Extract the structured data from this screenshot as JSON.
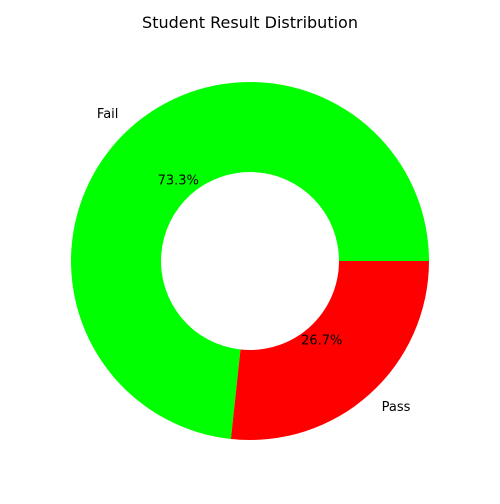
{
  "chart_data": {
    "type": "pie",
    "title": "Student Result Distribution",
    "donut": true,
    "slices": [
      {
        "label": "Fail",
        "value": 73.3,
        "pct_label": "73.3%",
        "color": "#00ff00"
      },
      {
        "label": "Pass",
        "value": 26.7,
        "pct_label": "26.7%",
        "color": "#ff0000"
      }
    ]
  }
}
